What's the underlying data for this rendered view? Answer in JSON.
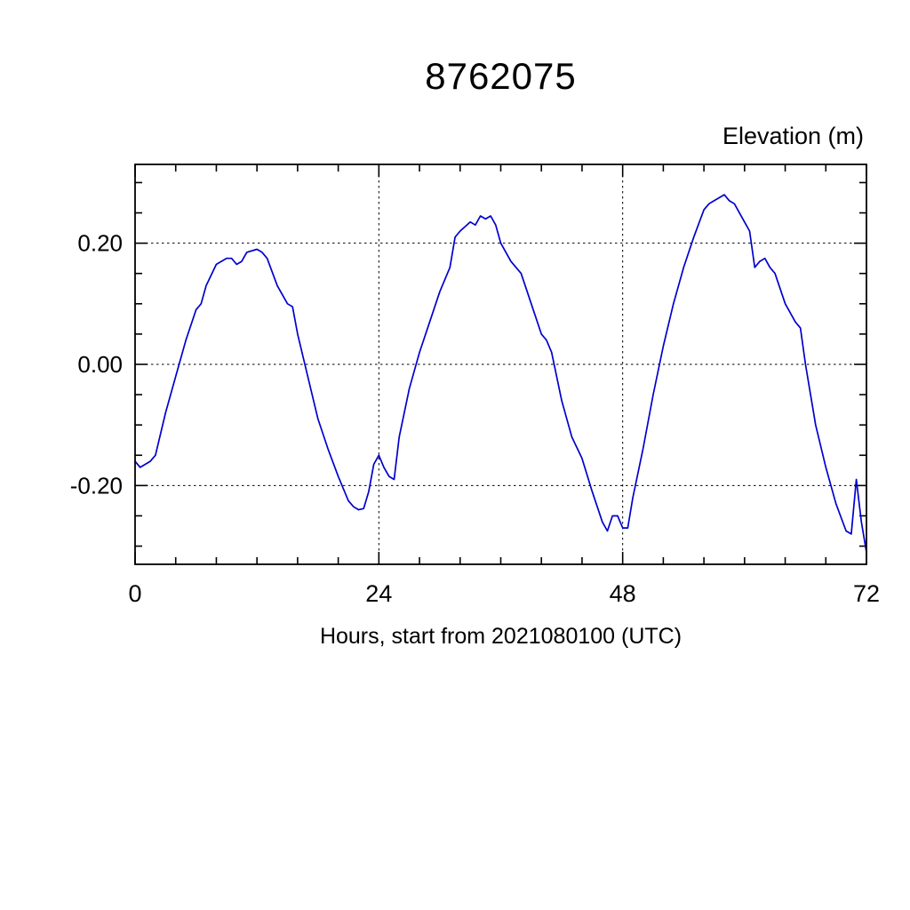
{
  "chart_data": {
    "type": "line",
    "title": "8762075",
    "xlabel": "Hours, start from 2021080100 (UTC)",
    "ylabel": "Elevation (m)",
    "xlim": [
      0,
      72
    ],
    "ylim": [
      -0.33,
      0.33
    ],
    "x_major_ticks": [
      0,
      24,
      48,
      72
    ],
    "x_tick_labels": [
      "0",
      "24",
      "48",
      "72"
    ],
    "x_minor_interval": 4,
    "y_major_ticks": [
      0.2,
      0.0,
      -0.2
    ],
    "y_tick_labels": [
      "0.20",
      "0.00",
      "-0.20"
    ],
    "y_minor_interval": 0.05,
    "grid_x": [
      24,
      48
    ],
    "grid_y": [
      0.2,
      0.0,
      -0.2
    ],
    "grid_on": true,
    "legend": "none",
    "line_color": "#0000cd",
    "series_name": "Elevation (m)",
    "x": [
      0,
      0.5,
      1,
      1.5,
      2,
      3,
      4,
      5,
      6,
      6.5,
      7,
      8,
      9,
      9.5,
      10,
      10.5,
      11,
      12,
      12.5,
      13,
      14,
      15,
      15.5,
      16,
      17,
      18,
      19,
      20,
      21,
      21.5,
      22,
      22.5,
      23,
      23.5,
      24,
      24.5,
      25,
      25.5,
      26,
      27,
      28,
      29,
      30,
      31,
      31.5,
      32,
      33,
      33.5,
      34,
      34.5,
      35,
      35.5,
      36,
      37,
      38,
      39,
      40,
      40.5,
      41,
      42,
      43,
      44,
      45,
      45.5,
      46,
      46.5,
      47,
      47.5,
      48,
      48.5,
      49,
      50,
      51,
      52,
      53,
      54,
      55,
      56,
      56.5,
      57,
      57.5,
      58,
      58.5,
      59,
      60,
      60.5,
      61,
      61.5,
      62,
      62.5,
      63,
      64,
      65,
      65.5,
      66,
      67,
      68,
      69,
      70,
      70.5,
      71,
      71.5,
      72
    ],
    "y": [
      -0.16,
      -0.17,
      -0.165,
      -0.16,
      -0.15,
      -0.08,
      -0.02,
      0.04,
      0.09,
      0.1,
      0.13,
      0.165,
      0.175,
      0.175,
      0.165,
      0.17,
      0.185,
      0.19,
      0.185,
      0.175,
      0.13,
      0.1,
      0.095,
      0.05,
      -0.02,
      -0.09,
      -0.14,
      -0.185,
      -0.225,
      -0.235,
      -0.24,
      -0.238,
      -0.21,
      -0.165,
      -0.15,
      -0.17,
      -0.185,
      -0.19,
      -0.12,
      -0.04,
      0.02,
      0.07,
      0.12,
      0.16,
      0.21,
      0.22,
      0.235,
      0.23,
      0.245,
      0.24,
      0.245,
      0.23,
      0.2,
      0.17,
      0.15,
      0.1,
      0.05,
      0.04,
      0.02,
      -0.06,
      -0.12,
      -0.155,
      -0.21,
      -0.235,
      -0.26,
      -0.275,
      -0.25,
      -0.25,
      -0.27,
      -0.27,
      -0.22,
      -0.14,
      -0.05,
      0.03,
      0.1,
      0.16,
      0.21,
      0.255,
      0.265,
      0.27,
      0.275,
      0.28,
      0.27,
      0.265,
      0.235,
      0.22,
      0.16,
      0.17,
      0.175,
      0.16,
      0.15,
      0.1,
      0.07,
      0.06,
      0.0,
      -0.1,
      -0.17,
      -0.23,
      -0.275,
      -0.28,
      -0.19,
      -0.26,
      -0.31
    ]
  }
}
